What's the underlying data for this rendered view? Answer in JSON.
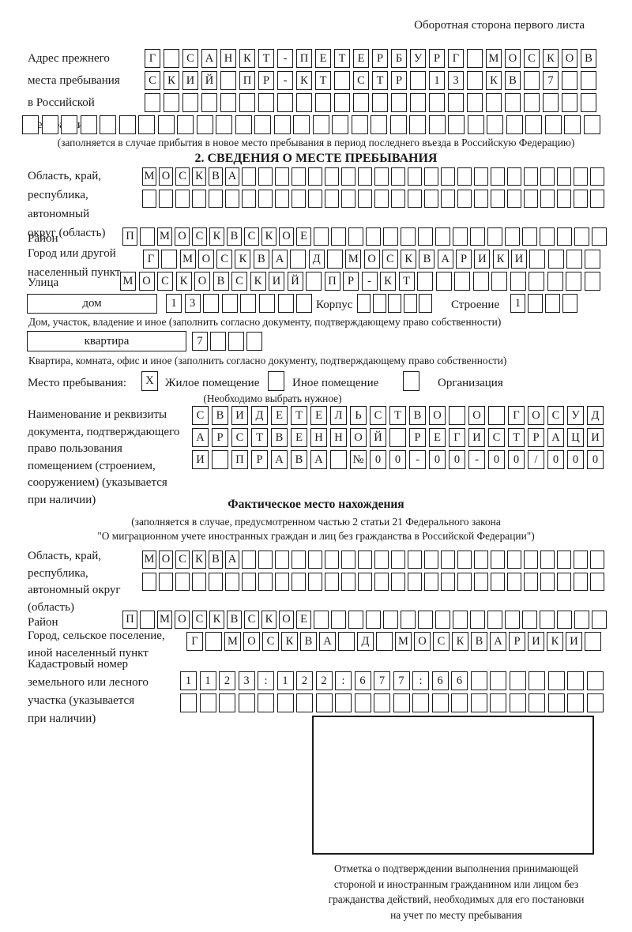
{
  "page": {
    "side_note": "Оборотная сторона первого листа"
  },
  "prev_address": {
    "label_lines": [
      "Адрес прежнего",
      "места пребывания",
      "в Российской",
      "Федерации"
    ],
    "rows": [
      {
        "n": 24,
        "v": "Г САНКТ-ПЕТЕРБУРГ МОСКОВ"
      },
      {
        "n": 24,
        "v": "СКИЙ ПР-КТ СТР 13 КВ 7"
      },
      {
        "n": 24,
        "v": ""
      },
      {
        "n": 30,
        "v": ""
      }
    ],
    "note": "(заполняется в случае прибытия в новое место пребывания в период последнего въезда в Российскую Федерацию)"
  },
  "section2": {
    "title": "2. СВЕДЕНИЯ О МЕСТЕ ПРЕБЫВАНИЯ",
    "region": {
      "label_lines": [
        "Область, край,",
        "республика,",
        "автономный",
        "округ (область)"
      ],
      "rows": [
        {
          "n": 28,
          "v": "МОСКВА"
        },
        {
          "n": 28,
          "v": ""
        }
      ]
    },
    "district": {
      "label": "Район",
      "row": {
        "n": 28,
        "v": "П МОСКВСКОЕ"
      }
    },
    "city": {
      "label_lines": [
        "Город или другой",
        "населенный пункт"
      ],
      "row": {
        "n": 25,
        "v": "Г МОСКВА Д МОСКВАРИКИ"
      }
    },
    "street": {
      "label": "Улица",
      "row": {
        "n": 26,
        "v": "МОСКОВСКИЙ ПР-КТ"
      }
    },
    "house": {
      "box_label": "дом",
      "house_row": {
        "n": 8,
        "v": "13"
      },
      "korpus_label": "Корпус",
      "korpus_row": {
        "n": 5,
        "v": ""
      },
      "stroenie_label": "Строение",
      "stroenie_row": {
        "n": 4,
        "v": "1"
      }
    },
    "house_note": "Дом, участок, владение и иное (заполнить согласно документу, подтверждающему право собственности)",
    "apartment": {
      "box_label": "квартира",
      "row": {
        "n": 4,
        "v": "7"
      }
    },
    "apartment_note": "Квартира, комната, офис и иное (заполнить согласно документу, подтверждающему право собственности)",
    "stay_type": {
      "label": "Место пребывания:",
      "options": [
        {
          "label": "Жилое помещение",
          "mark": "X"
        },
        {
          "label": "Иное помещение",
          "mark": ""
        },
        {
          "label": "Организация",
          "mark": ""
        }
      ],
      "hint": "(Необходимо выбрать нужное)"
    },
    "document": {
      "label_lines": [
        "Наименование и реквизиты",
        "документа, подтверждающего",
        "право пользования",
        "помещением (строением,",
        "сооружением) (указывается",
        "при наличии)"
      ],
      "rows": [
        {
          "n": 21,
          "v": "СВИДЕТЕЛЬСТВО О ГОСУД"
        },
        {
          "n": 21,
          "v": "АРСТВЕННОЙ РЕГИСТРАЦИ"
        },
        {
          "n": 21,
          "v": "И ПРАВА №00-00-00/000"
        }
      ]
    }
  },
  "actual_location": {
    "title": "Фактическое место нахождения",
    "note_lines": [
      "(заполняется в случае, предусмотренном частью 2 статьи 21 Федерального закона",
      "\"О миграционном учете иностранных граждан и лиц без гражданства в Российской Федерации\")"
    ],
    "region": {
      "label_lines": [
        "Область, край,",
        "республика,",
        "автономный округ",
        "(область)"
      ],
      "rows": [
        {
          "n": 28,
          "v": "МОСКВА"
        },
        {
          "n": 28,
          "v": ""
        }
      ]
    },
    "district": {
      "label": "Район",
      "row": {
        "n": 28,
        "v": "П МОСКВСКОЕ"
      }
    },
    "city": {
      "label_lines": [
        "Город, сельское поселение,",
        "иной населенный пункт"
      ],
      "row": {
        "n": 22,
        "v": "Г МОСКВА Д МОСКВАРИКИ"
      }
    },
    "cadastral": {
      "label_lines": [
        "Кадастровый номер",
        "земельного или лесного",
        "участка (указывается",
        "при наличии)"
      ],
      "rows": [
        {
          "n": 22,
          "v": "1123:122:677:66"
        },
        {
          "n": 22,
          "v": ""
        }
      ]
    }
  },
  "stamp": {
    "caption_lines": [
      "Отметка о подтверждении выполнения принимающей",
      "стороной и иностранным гражданином или лицом без",
      "гражданства действий, необходимых для его постановки",
      "на учет по месту пребывания"
    ]
  }
}
